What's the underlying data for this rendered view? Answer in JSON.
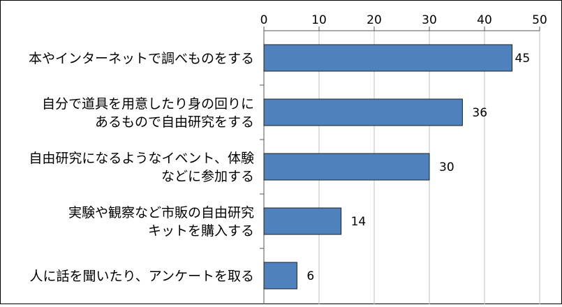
{
  "chart_data": {
    "type": "bar",
    "orientation": "horizontal",
    "categories": [
      [
        "本やインターネットで調べものをする"
      ],
      [
        "自分で道具を用意したり身の回りに",
        "あるもので自由研究をする"
      ],
      [
        "自由研究になるようなイベント、体験",
        "などに参加する"
      ],
      [
        "実験や観察など市販の自由研究",
        "キットを購入する"
      ],
      [
        "人に話を聞いたり、アンケートを取る"
      ]
    ],
    "values": [
      45,
      36,
      30,
      14,
      6
    ],
    "value_labels": [
      "45",
      "36",
      "30",
      "14",
      "6"
    ],
    "xlim": [
      0,
      50
    ],
    "ticks": [
      0,
      10,
      20,
      30,
      40,
      50
    ],
    "tick_labels": [
      "0",
      "10",
      "20",
      "30",
      "40",
      "50"
    ],
    "grid": true,
    "legend": "none",
    "colors": {
      "bar": "#4f81bd",
      "bar_stroke": "#1f1f1f",
      "grid": "#bfbfbf",
      "frame": "#000000",
      "text": "#000000"
    }
  }
}
